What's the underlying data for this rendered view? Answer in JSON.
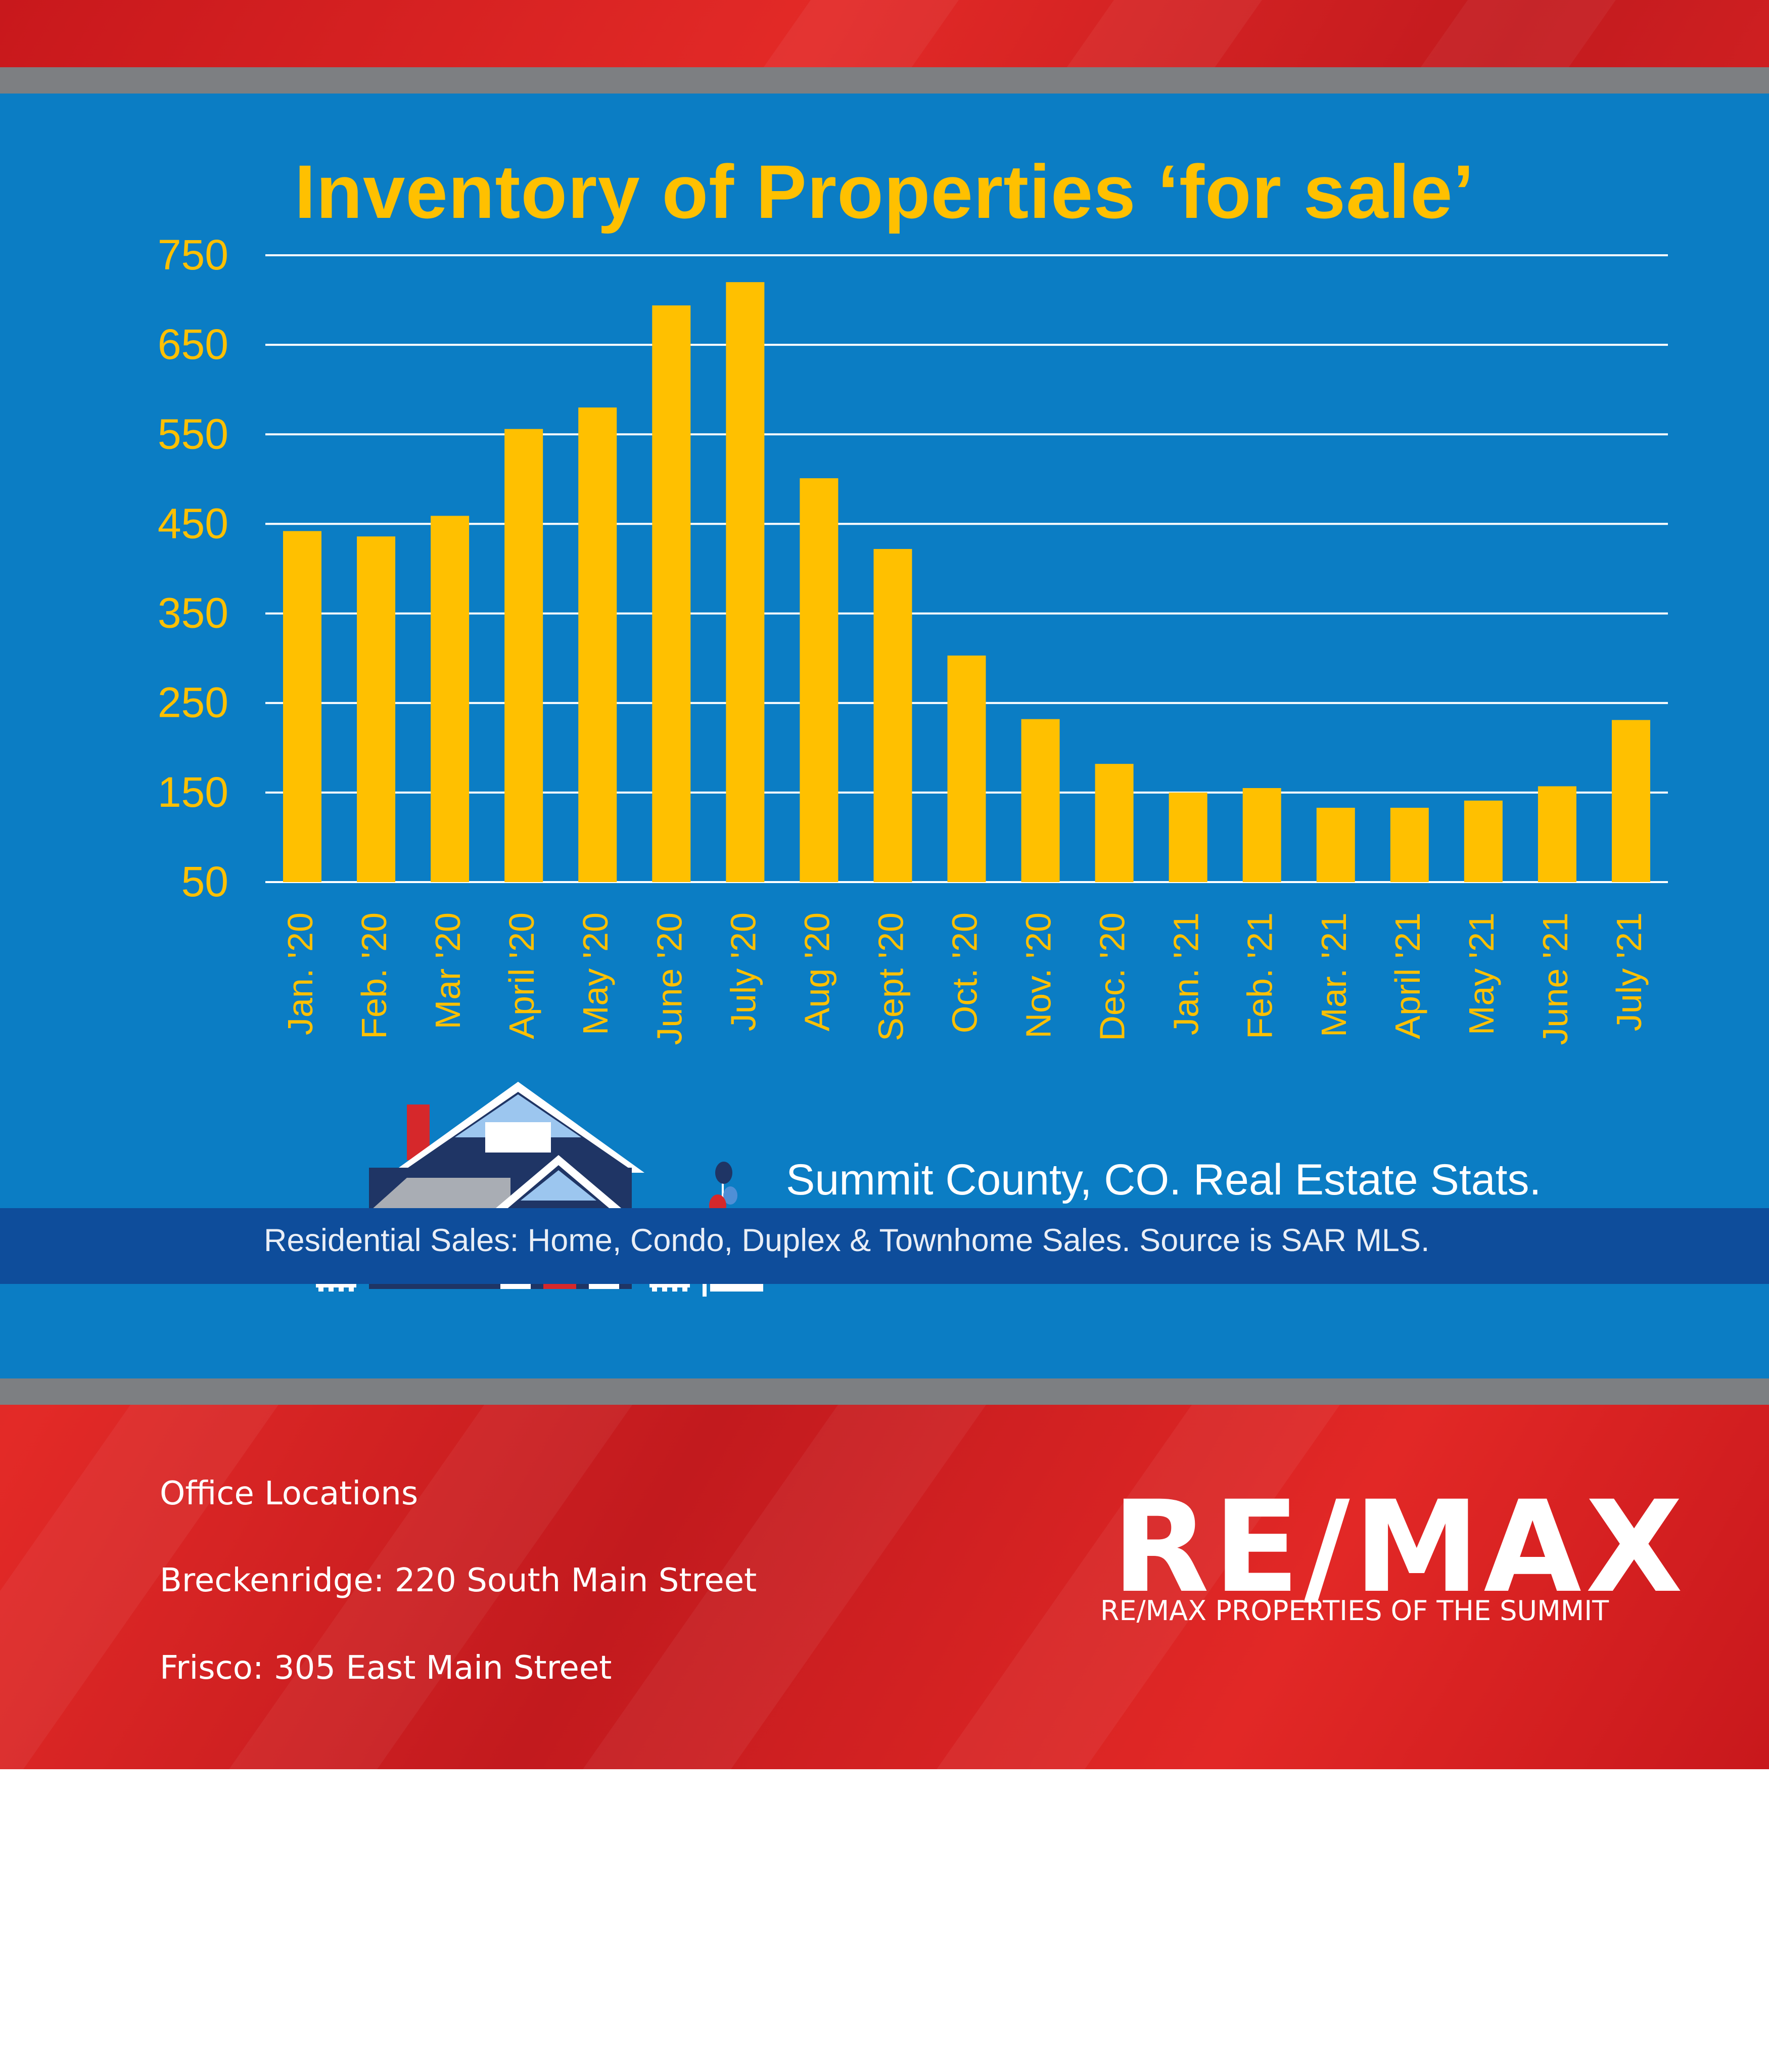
{
  "colors": {
    "bar": "#ffc000",
    "axis_text": "#ffc000",
    "panel_blue": "#0b7dc4",
    "band_blue": "#0e4d9b",
    "brand_red": "#d8201f",
    "grid": "#ffffff"
  },
  "chart_data": {
    "type": "bar",
    "title": "Inventory of Properties ‘for sale’",
    "categories": [
      "Jan. '20",
      "Feb. '20",
      "Mar '20",
      "April '20",
      "May '20",
      "June '20",
      "July '20",
      "Aug '20",
      "Sept '20",
      "Oct. '20",
      "Nov. '20",
      "Dec. '20",
      "Jan. '21",
      "Feb. '21",
      "Mar. '21",
      "April '21",
      "May '21",
      "June '21",
      "July '21"
    ],
    "values": [
      442,
      436,
      459,
      556,
      580,
      694,
      720,
      501,
      422,
      303,
      232,
      182,
      150,
      155,
      133,
      133,
      141,
      157,
      231
    ],
    "yticks": [
      50,
      150,
      250,
      350,
      450,
      550,
      650,
      750
    ],
    "ylim": [
      50,
      750
    ],
    "grid": true,
    "xlabel": "",
    "ylabel": ""
  },
  "captions": {
    "stats": "Summit County, CO. Real Estate Stats.",
    "residential": "Residential Sales: Home, Condo, Duplex & Townhome  Sales. Source is SAR MLS."
  },
  "office": {
    "heading": "Office Locations",
    "lines": [
      "Breckenridge: 220 South Main Street",
      "Frisco: 305 East Main Street"
    ]
  },
  "brand": {
    "logo": "RE/MAX",
    "name": "RE/MAX PROPERTIES OF THE SUMMIT"
  },
  "icons": [
    "house-illustration-icon",
    "balloons-icon",
    "for-sale-sign-icon",
    "fence-icon"
  ]
}
